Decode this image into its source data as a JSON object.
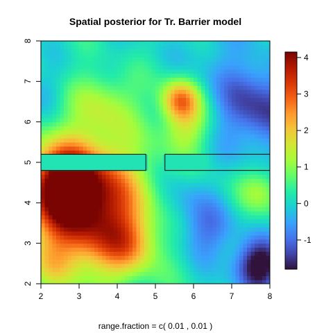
{
  "chart_data": {
    "type": "heatmap",
    "title": "Spatial posterior for Tr. Barrier model",
    "xlabel": "range.fraction = c( 0.01 ,  0.01 )",
    "ylabel": "",
    "xlim": [
      2,
      8
    ],
    "ylim": [
      2,
      8
    ],
    "x_ticks": [
      "2",
      "3",
      "4",
      "5",
      "6",
      "7",
      "8"
    ],
    "y_ticks": [
      "2",
      "3",
      "4",
      "5",
      "6",
      "7",
      "8"
    ],
    "colorbar": {
      "min": -1.8,
      "max": 4.15,
      "ticks": [
        "-1",
        "0",
        "1",
        "2",
        "3",
        "4"
      ],
      "palette": [
        "#30123b",
        "#4145ab",
        "#4675ed",
        "#39a2fc",
        "#1bcfd4",
        "#24eca6",
        "#61fc6c",
        "#a4fc3b",
        "#d1e834",
        "#f3c63a",
        "#fe9b2d",
        "#f36315",
        "#d93806",
        "#b11901",
        "#7a0402"
      ]
    },
    "barriers": [
      {
        "x": [
          2,
          4.75
        ],
        "y": [
          4.8,
          5.2
        ]
      },
      {
        "x": [
          5.25,
          8
        ],
        "y": [
          4.8,
          5.2
        ]
      }
    ],
    "field_hotspots": [
      {
        "x": 3.2,
        "y": 3.9,
        "value": 3.9,
        "spread": 1.1
      },
      {
        "x": 2.6,
        "y": 4.5,
        "value": 2.8,
        "spread": 0.6
      },
      {
        "x": 5.65,
        "y": 6.55,
        "value": 2.4,
        "spread": 0.35
      },
      {
        "x": 5.8,
        "y": 5.85,
        "value": 1.2,
        "spread": 0.45
      },
      {
        "x": 4.3,
        "y": 3.0,
        "value": 1.3,
        "spread": 0.5
      },
      {
        "x": 7.7,
        "y": 2.45,
        "value": -2.3,
        "spread": 0.45
      },
      {
        "x": 7.7,
        "y": 6.4,
        "value": -1.6,
        "spread": 0.8
      },
      {
        "x": 5.6,
        "y": 4.0,
        "value": -0.7,
        "spread": 0.55
      },
      {
        "x": 6.4,
        "y": 3.3,
        "value": -1.0,
        "spread": 0.5
      },
      {
        "x": 6.5,
        "y": 7.9,
        "value": -0.4,
        "spread": 0.6
      },
      {
        "x": 2.1,
        "y": 6.8,
        "value": -0.4,
        "spread": 0.4
      },
      {
        "x": 3.7,
        "y": 6.5,
        "value": 1.0,
        "spread": 0.6
      },
      {
        "x": 2.3,
        "y": 2.5,
        "value": 0.6,
        "spread": 0.4
      },
      {
        "x": 7.8,
        "y": 4.3,
        "value": 1.0,
        "spread": 0.4
      },
      {
        "x": 4.0,
        "y": 7.5,
        "value": -0.2,
        "spread": 0.5
      }
    ],
    "field_baseline": 0.15
  }
}
